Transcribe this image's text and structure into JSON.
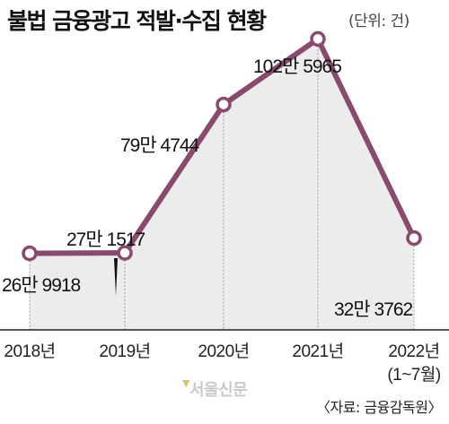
{
  "header": {
    "title": "불법 금융광고 적발·수집 현황",
    "unit": "(단위: 건)"
  },
  "footer": {
    "source": "〈자료: 금융감독원〉",
    "watermark": "서울신문"
  },
  "colors": {
    "line": "#8a4a6e",
    "area": "#ececec",
    "marker_fill": "#ffffff",
    "baseline": "#222222",
    "guide": "#999999"
  },
  "chart_data": {
    "type": "line",
    "title": "불법 금융광고 적발·수집 현황",
    "unit": "(단위: 건)",
    "categories": [
      "2018년",
      "2019년",
      "2020년",
      "2021년",
      "2022년"
    ],
    "category_notes": [
      "",
      "",
      "",
      "",
      "(1~7월)"
    ],
    "values": [
      269918,
      271517,
      794744,
      1025965,
      323762
    ],
    "value_labels": [
      "26만 9918",
      "27만 1517",
      "79만 4744",
      "102만 5965",
      "32만 3762"
    ],
    "ylim": [
      0,
      1100000
    ],
    "grid": false,
    "legend": "none"
  }
}
